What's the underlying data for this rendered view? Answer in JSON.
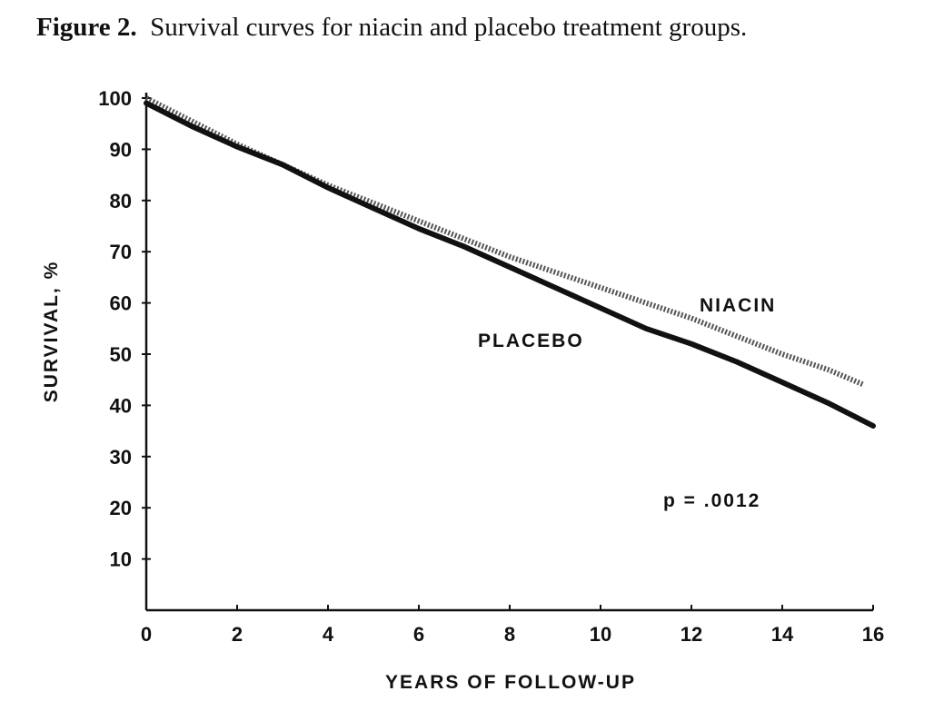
{
  "figure": {
    "label": "Figure 2.",
    "caption": "Survival curves for niacin and placebo treatment groups."
  },
  "chart_data": {
    "type": "line",
    "xlabel": "YEARS OF FOLLOW-UP",
    "ylabel": "SURVIVAL, %",
    "xlim": [
      0,
      16
    ],
    "ylim": [
      0,
      100
    ],
    "x_ticks": [
      0,
      2,
      4,
      6,
      8,
      10,
      12,
      14,
      16
    ],
    "y_ticks": [
      10,
      20,
      30,
      40,
      50,
      60,
      70,
      80,
      90,
      100
    ],
    "grid": false,
    "annotation": "p = .0012",
    "series": [
      {
        "name": "NIACIN",
        "style": "dotted",
        "color": "#555555",
        "x": [
          0,
          1,
          2,
          3,
          4,
          5,
          6,
          7,
          8,
          9,
          10,
          11,
          12,
          13,
          14,
          15,
          15.8
        ],
        "y": [
          100,
          95.5,
          91,
          87,
          83,
          79.5,
          76,
          72.5,
          69,
          66,
          63,
          60,
          57,
          53.5,
          50,
          47,
          44
        ]
      },
      {
        "name": "PLACEBO",
        "style": "solid",
        "color": "#111111",
        "x": [
          0,
          1,
          2,
          3,
          4,
          5,
          6,
          7,
          8,
          9,
          10,
          11,
          12,
          13,
          14,
          15,
          16
        ],
        "y": [
          99,
          94.5,
          90.5,
          87,
          82.5,
          78.5,
          74.5,
          71,
          67,
          63,
          59,
          55,
          52,
          48.5,
          44.5,
          40.5,
          36
        ]
      }
    ]
  }
}
